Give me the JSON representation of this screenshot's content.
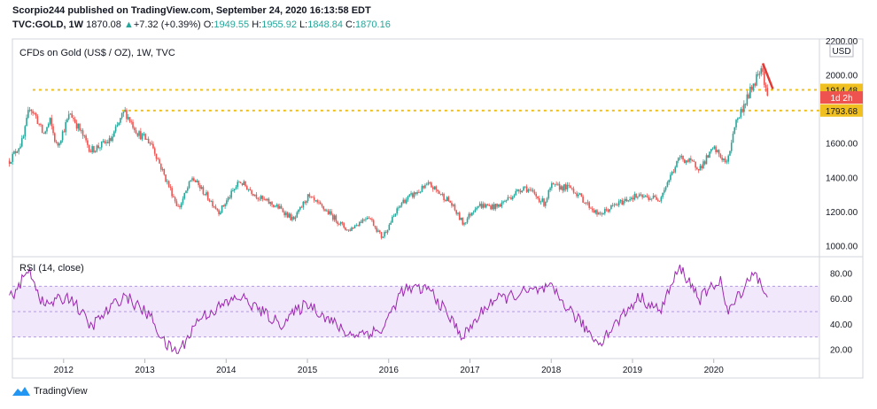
{
  "header": {
    "publisher_line": "Scorpio244 published on TradingView.com, September 24, 2020 16:13:58 EDT",
    "symbol": "TVC:GOLD, 1W",
    "last": "1870.08",
    "change_arrow": "▲",
    "change": "+7.32 (+0.39%)",
    "o_label": "O:",
    "o_val": "1949.55",
    "h_label": "H:",
    "h_val": "1955.92",
    "l_label": "L:",
    "l_val": "1848.84",
    "c_label": "C:",
    "c_val": "1870.16"
  },
  "footer": {
    "brand": "TradingView"
  },
  "colors": {
    "up": "#26a69a",
    "down": "#ef5350",
    "level": "#f0c020",
    "rsi_line": "#9c27b0",
    "rsi_band": "#e8d8f8",
    "trend": "#e53935"
  },
  "chart_data": [
    {
      "type": "candlestick",
      "title": "CFDs on Gold (US$ / OZ), 1W, TVC",
      "currency": "USD",
      "x_tick_labels": [
        "2012",
        "2013",
        "2014",
        "2015",
        "2016",
        "2017",
        "2018",
        "2019",
        "2020"
      ],
      "y_tick_labels": [
        "1000.00",
        "1200.00",
        "1400.00",
        "1600.00",
        "1800.00",
        "2000.00",
        "2200.00"
      ],
      "ylim": [
        950,
        2200
      ],
      "horizontal_levels": [
        {
          "value": 1914.48,
          "label": "1914.48"
        },
        {
          "value": 1793.68,
          "label": "1793.68"
        }
      ],
      "countdown_label": "1d 2h",
      "trendline": {
        "from": [
          "2020-08",
          2070
        ],
        "to": [
          "2020-09",
          1920
        ]
      },
      "approx_weekly_close_path": [
        [
          "2011-05",
          1500
        ],
        [
          "2011-07",
          1620
        ],
        [
          "2011-08",
          1820
        ],
        [
          "2011-09",
          1750
        ],
        [
          "2011-10",
          1650
        ],
        [
          "2011-11",
          1730
        ],
        [
          "2011-12",
          1580
        ],
        [
          "2012-02",
          1780
        ],
        [
          "2012-05",
          1560
        ],
        [
          "2012-08",
          1620
        ],
        [
          "2012-10",
          1790
        ],
        [
          "2012-12",
          1660
        ],
        [
          "2013-02",
          1600
        ],
        [
          "2013-04",
          1400
        ],
        [
          "2013-06",
          1220
        ],
        [
          "2013-08",
          1400
        ],
        [
          "2013-12",
          1200
        ],
        [
          "2014-03",
          1380
        ],
        [
          "2014-06",
          1280
        ],
        [
          "2014-09",
          1220
        ],
        [
          "2014-11",
          1150
        ],
        [
          "2015-01",
          1290
        ],
        [
          "2015-04",
          1200
        ],
        [
          "2015-07",
          1090
        ],
        [
          "2015-10",
          1180
        ],
        [
          "2015-12",
          1050
        ],
        [
          "2016-03",
          1260
        ],
        [
          "2016-07",
          1360
        ],
        [
          "2016-10",
          1260
        ],
        [
          "2016-12",
          1130
        ],
        [
          "2017-02",
          1240
        ],
        [
          "2017-05",
          1230
        ],
        [
          "2017-09",
          1350
        ],
        [
          "2017-12",
          1250
        ],
        [
          "2018-01",
          1350
        ],
        [
          "2018-04",
          1340
        ],
        [
          "2018-08",
          1180
        ],
        [
          "2018-10",
          1230
        ],
        [
          "2019-01",
          1290
        ],
        [
          "2019-05",
          1280
        ],
        [
          "2019-08",
          1520
        ],
        [
          "2019-11",
          1460
        ],
        [
          "2020-01",
          1570
        ],
        [
          "2020-03",
          1480
        ],
        [
          "2020-04",
          1700
        ],
        [
          "2020-07",
          1960
        ],
        [
          "2020-08",
          2060
        ],
        [
          "2020-09",
          1870
        ]
      ]
    },
    {
      "type": "line",
      "title": "RSI (14, close)",
      "y_tick_labels": [
        "20.00",
        "40.00",
        "60.00",
        "80.00"
      ],
      "ylim": [
        15,
        90
      ],
      "band": [
        30,
        70
      ],
      "approx_series": [
        [
          "2011-05",
          60
        ],
        [
          "2011-08",
          83
        ],
        [
          "2011-10",
          55
        ],
        [
          "2012-02",
          62
        ],
        [
          "2012-05",
          38
        ],
        [
          "2012-10",
          63
        ],
        [
          "2013-02",
          45
        ],
        [
          "2013-04",
          24
        ],
        [
          "2013-06",
          18
        ],
        [
          "2013-09",
          45
        ],
        [
          "2014-03",
          62
        ],
        [
          "2014-09",
          40
        ],
        [
          "2015-01",
          57
        ],
        [
          "2015-07",
          32
        ],
        [
          "2015-12",
          35
        ],
        [
          "2016-03",
          67
        ],
        [
          "2016-07",
          68
        ],
        [
          "2016-12",
          30
        ],
        [
          "2017-04",
          58
        ],
        [
          "2017-09",
          65
        ],
        [
          "2018-01",
          68
        ],
        [
          "2018-08",
          25
        ],
        [
          "2019-02",
          62
        ],
        [
          "2019-05",
          50
        ],
        [
          "2019-08",
          85
        ],
        [
          "2019-11",
          60
        ],
        [
          "2020-02",
          76
        ],
        [
          "2020-03",
          48
        ],
        [
          "2020-07",
          83
        ],
        [
          "2020-09",
          57
        ]
      ]
    }
  ]
}
